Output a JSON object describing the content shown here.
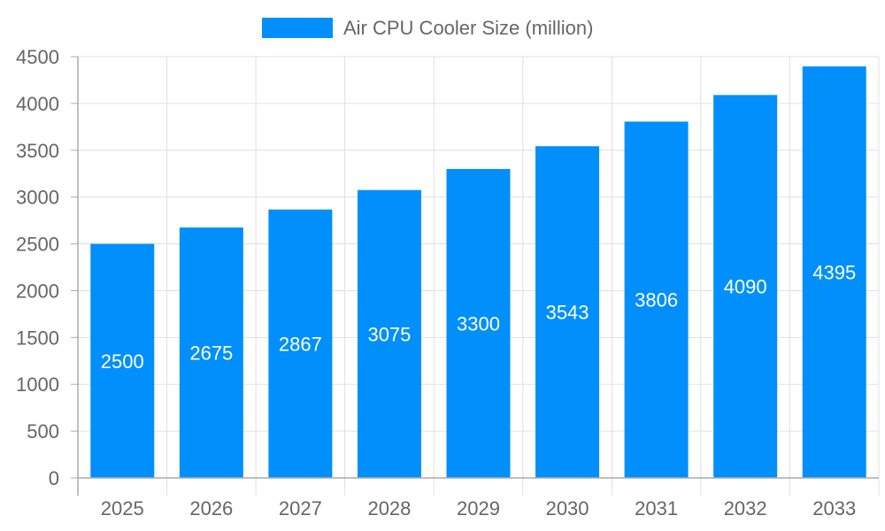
{
  "chart_data": {
    "type": "bar",
    "title": "",
    "xlabel": "",
    "ylabel": "",
    "categories": [
      "2025",
      "2026",
      "2027",
      "2028",
      "2029",
      "2030",
      "2031",
      "2032",
      "2033"
    ],
    "series": [
      {
        "name": "Air CPU Cooler Size (million)",
        "values": [
          2500,
          2675,
          2867,
          3075,
          3300,
          3543,
          3806,
          4090,
          4395
        ]
      }
    ],
    "ylim": [
      0,
      4500
    ],
    "yticks": [
      0,
      500,
      1000,
      1500,
      2000,
      2500,
      3000,
      3500,
      4000,
      4500
    ],
    "grid": true,
    "legend_position": "top",
    "data_labels": true,
    "colors": {
      "bar": "#008FFB",
      "grid": "#e0e0e0",
      "axis": "#aaaaaa",
      "tick_text": "#666666",
      "label_text": "#ffffff"
    }
  }
}
